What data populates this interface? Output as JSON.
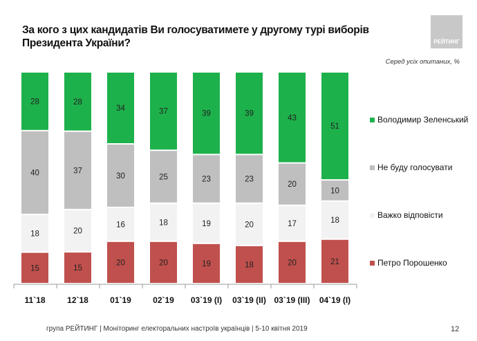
{
  "title": "За кого з цих кандидатів Ви голосуватимете у другому турі виборів Президента України?",
  "logo_text": "РЕЙТИНГ",
  "note": "Серед усіх опитаних, %",
  "footer": "група РЕЙТИНГ | Моніторинг електоральних настроїв українців  |  5-10 квітня 2019",
  "page_number": "12",
  "chart_data": {
    "type": "bar",
    "stacked": true,
    "categories": [
      "11`18",
      "12`18",
      "01`19",
      "02`19",
      "03`19 (I)",
      "03`19 (II)",
      "03`19 (III)",
      "04`19 (I)"
    ],
    "series": [
      {
        "name": "Петро Порошенко",
        "color": "#c0504d",
        "values": [
          15,
          15,
          20,
          20,
          19,
          18,
          20,
          21
        ]
      },
      {
        "name": "Важко відповісти",
        "color": "#f2f2f2",
        "values": [
          18,
          20,
          16,
          18,
          19,
          20,
          17,
          18
        ]
      },
      {
        "name": "Не буду голосувати",
        "color": "#bfbfbf",
        "values": [
          40,
          37,
          30,
          25,
          23,
          23,
          20,
          10
        ]
      },
      {
        "name": "Володимир Зеленський",
        "color": "#1db14b",
        "values": [
          28,
          28,
          34,
          37,
          39,
          39,
          43,
          51
        ]
      }
    ],
    "legend_order": [
      3,
      2,
      1,
      0
    ],
    "legend_position": "right",
    "grid": false
  }
}
